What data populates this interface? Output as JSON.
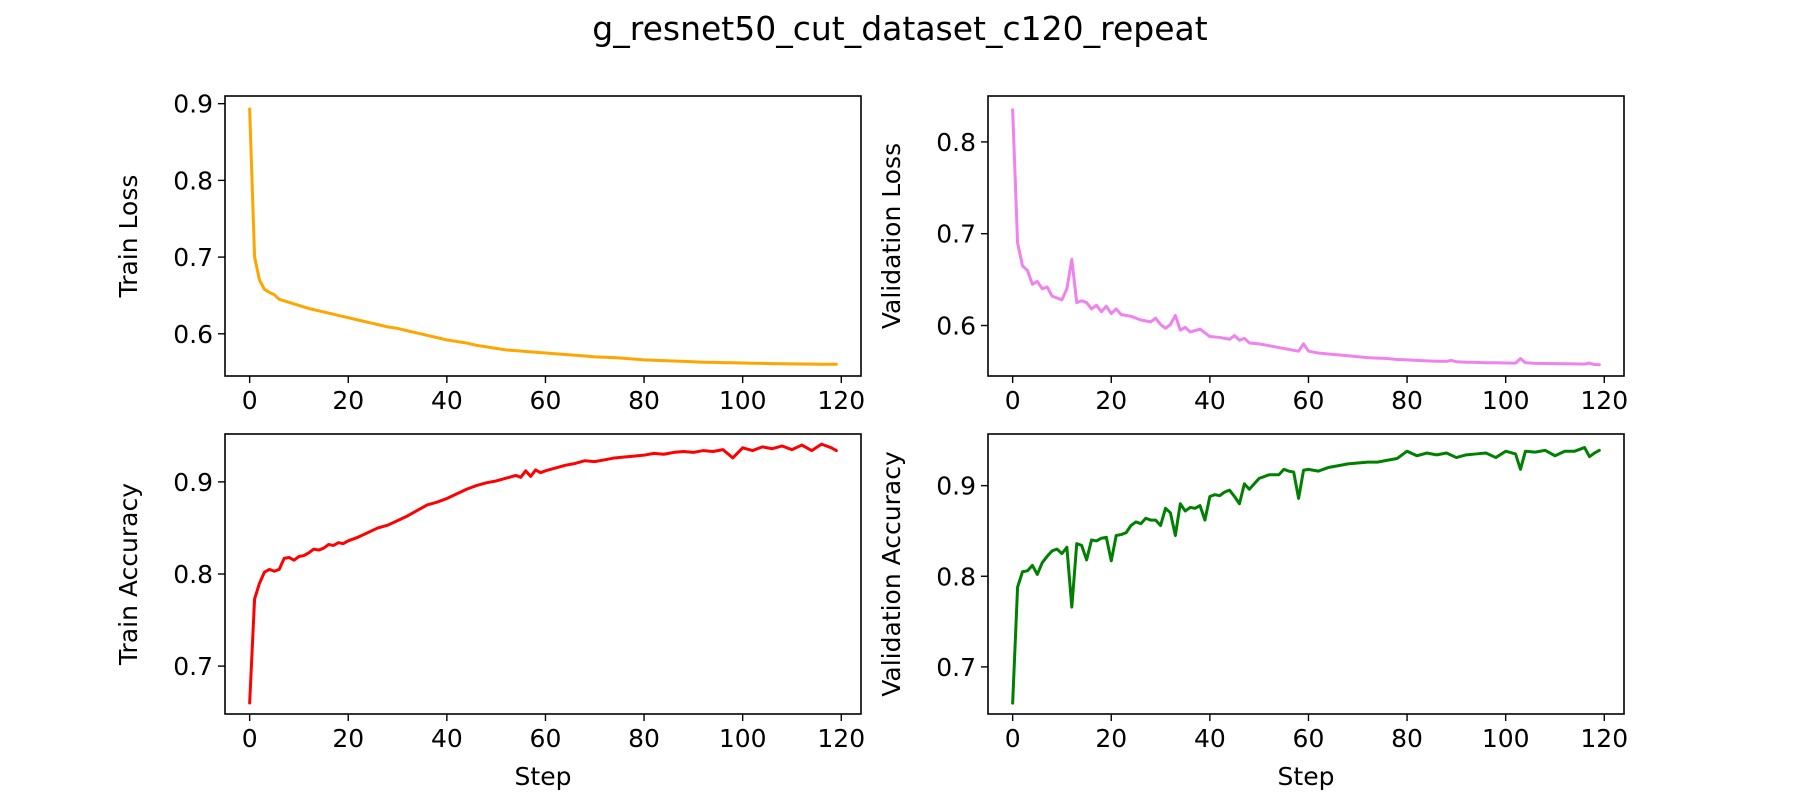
{
  "figure": {
    "title": "g_resnet50_cut_dataset_c120_repeat"
  },
  "chart_data": [
    {
      "type": "line",
      "ylabel": "Train Loss",
      "xlabel": "",
      "xlim": [
        -5,
        124
      ],
      "ylim": [
        0.545,
        0.91
      ],
      "xticks": [
        0,
        20,
        40,
        60,
        80,
        100,
        120
      ],
      "yticks": [
        0.6,
        0.7,
        0.8,
        0.9
      ],
      "color": "#ffa500",
      "series": [
        {
          "x": [
            0,
            1,
            2,
            3,
            4,
            5,
            6,
            7,
            8,
            9,
            10,
            12,
            14,
            16,
            18,
            20,
            22,
            24,
            26,
            28,
            30,
            32,
            34,
            36,
            38,
            40,
            42,
            44,
            46,
            48,
            50,
            52,
            54,
            56,
            58,
            60,
            62,
            64,
            66,
            68,
            70,
            72,
            74,
            76,
            78,
            80,
            82,
            84,
            86,
            88,
            90,
            92,
            94,
            96,
            98,
            100,
            102,
            104,
            106,
            108,
            110,
            112,
            114,
            116,
            118,
            119
          ],
          "y": [
            0.893,
            0.7,
            0.67,
            0.658,
            0.654,
            0.651,
            0.645,
            0.643,
            0.641,
            0.639,
            0.637,
            0.633,
            0.63,
            0.627,
            0.624,
            0.621,
            0.618,
            0.615,
            0.612,
            0.609,
            0.607,
            0.604,
            0.601,
            0.598,
            0.595,
            0.592,
            0.59,
            0.588,
            0.585,
            0.583,
            0.581,
            0.579,
            0.578,
            0.577,
            0.576,
            0.575,
            0.574,
            0.573,
            0.572,
            0.571,
            0.57,
            0.5695,
            0.569,
            0.568,
            0.567,
            0.566,
            0.5655,
            0.565,
            0.5645,
            0.564,
            0.5635,
            0.563,
            0.5627,
            0.5625,
            0.5622,
            0.562,
            0.5617,
            0.5615,
            0.5612,
            0.561,
            0.5608,
            0.5606,
            0.5605,
            0.5604,
            0.5603,
            0.5603
          ]
        }
      ]
    },
    {
      "type": "line",
      "ylabel": "Validation Loss",
      "xlabel": "",
      "xlim": [
        -5,
        124
      ],
      "ylim": [
        0.545,
        0.85
      ],
      "xticks": [
        0,
        20,
        40,
        60,
        80,
        100,
        120
      ],
      "yticks": [
        0.6,
        0.7,
        0.8
      ],
      "color": "#ee82ee",
      "series": [
        {
          "x": [
            0,
            1,
            2,
            3,
            4,
            5,
            6,
            7,
            8,
            9,
            10,
            11,
            12,
            13,
            14,
            15,
            16,
            17,
            18,
            19,
            20,
            21,
            22,
            24,
            26,
            28,
            29,
            30,
            31,
            32,
            33,
            34,
            35,
            36,
            38,
            39,
            40,
            42,
            44,
            45,
            46,
            47,
            48,
            50,
            52,
            54,
            56,
            57,
            58,
            59,
            60,
            62,
            64,
            66,
            68,
            70,
            72,
            74,
            76,
            78,
            80,
            82,
            84,
            86,
            88,
            89,
            90,
            92,
            94,
            96,
            98,
            100,
            102,
            103,
            104,
            106,
            108,
            110,
            112,
            114,
            116,
            117,
            118,
            119
          ],
          "y": [
            0.835,
            0.69,
            0.665,
            0.66,
            0.645,
            0.648,
            0.64,
            0.642,
            0.632,
            0.63,
            0.628,
            0.64,
            0.672,
            0.625,
            0.627,
            0.625,
            0.618,
            0.622,
            0.615,
            0.621,
            0.613,
            0.618,
            0.612,
            0.61,
            0.606,
            0.604,
            0.608,
            0.601,
            0.597,
            0.601,
            0.611,
            0.595,
            0.598,
            0.593,
            0.596,
            0.592,
            0.588,
            0.587,
            0.585,
            0.589,
            0.584,
            0.586,
            0.581,
            0.58,
            0.578,
            0.576,
            0.574,
            0.573,
            0.572,
            0.58,
            0.572,
            0.57,
            0.569,
            0.568,
            0.567,
            0.566,
            0.565,
            0.5645,
            0.564,
            0.563,
            0.5625,
            0.562,
            0.5615,
            0.561,
            0.561,
            0.562,
            0.5605,
            0.56,
            0.5598,
            0.5595,
            0.5595,
            0.5592,
            0.559,
            0.564,
            0.5595,
            0.5588,
            0.5586,
            0.5585,
            0.5583,
            0.5582,
            0.558,
            0.559,
            0.5575,
            0.5573
          ]
        }
      ]
    },
    {
      "type": "line",
      "ylabel": "Train Accuracy",
      "xlabel": "Step",
      "xlim": [
        -5,
        124
      ],
      "ylim": [
        0.648,
        0.952
      ],
      "xticks": [
        0,
        20,
        40,
        60,
        80,
        100,
        120
      ],
      "yticks": [
        0.7,
        0.8,
        0.9
      ],
      "color": "#ff0000",
      "series": [
        {
          "x": [
            0,
            1,
            2,
            3,
            4,
            5,
            6,
            7,
            8,
            9,
            10,
            11,
            12,
            13,
            14,
            15,
            16,
            17,
            18,
            19,
            20,
            22,
            24,
            26,
            28,
            30,
            32,
            34,
            36,
            38,
            40,
            42,
            44,
            46,
            48,
            50,
            52,
            54,
            55,
            56,
            57,
            58,
            59,
            60,
            62,
            64,
            66,
            68,
            70,
            72,
            74,
            76,
            78,
            80,
            82,
            84,
            86,
            88,
            90,
            92,
            94,
            96,
            98,
            100,
            102,
            104,
            106,
            108,
            110,
            112,
            114,
            116,
            118,
            119
          ],
          "y": [
            0.66,
            0.773,
            0.79,
            0.802,
            0.805,
            0.803,
            0.805,
            0.817,
            0.818,
            0.815,
            0.819,
            0.82,
            0.823,
            0.827,
            0.826,
            0.828,
            0.832,
            0.831,
            0.834,
            0.833,
            0.836,
            0.84,
            0.845,
            0.85,
            0.853,
            0.858,
            0.863,
            0.869,
            0.875,
            0.878,
            0.882,
            0.887,
            0.892,
            0.896,
            0.899,
            0.901,
            0.904,
            0.907,
            0.905,
            0.912,
            0.906,
            0.913,
            0.91,
            0.912,
            0.915,
            0.918,
            0.92,
            0.923,
            0.922,
            0.924,
            0.926,
            0.927,
            0.928,
            0.929,
            0.931,
            0.93,
            0.932,
            0.933,
            0.932,
            0.934,
            0.933,
            0.935,
            0.926,
            0.937,
            0.934,
            0.938,
            0.936,
            0.939,
            0.935,
            0.94,
            0.934,
            0.941,
            0.937,
            0.934
          ]
        }
      ]
    },
    {
      "type": "line",
      "ylabel": "Validation Accuracy",
      "xlabel": "Step",
      "xlim": [
        -5,
        124
      ],
      "ylim": [
        0.648,
        0.957
      ],
      "xticks": [
        0,
        20,
        40,
        60,
        80,
        100,
        120
      ],
      "yticks": [
        0.7,
        0.8,
        0.9
      ],
      "color": "#008000",
      "series": [
        {
          "x": [
            0,
            1,
            2,
            3,
            4,
            5,
            6,
            7,
            8,
            9,
            10,
            11,
            12,
            13,
            14,
            15,
            16,
            17,
            18,
            19,
            20,
            21,
            22,
            23,
            24,
            25,
            26,
            27,
            28,
            29,
            30,
            31,
            32,
            33,
            34,
            35,
            36,
            37,
            38,
            39,
            40,
            41,
            42,
            43,
            44,
            45,
            46,
            47,
            48,
            50,
            52,
            54,
            55,
            56,
            57,
            58,
            59,
            60,
            62,
            64,
            66,
            68,
            70,
            72,
            74,
            76,
            78,
            80,
            82,
            84,
            86,
            88,
            90,
            92,
            94,
            96,
            98,
            100,
            102,
            103,
            104,
            106,
            108,
            110,
            112,
            114,
            116,
            117,
            118,
            119
          ],
          "y": [
            0.66,
            0.788,
            0.805,
            0.806,
            0.812,
            0.802,
            0.815,
            0.822,
            0.828,
            0.83,
            0.825,
            0.832,
            0.766,
            0.836,
            0.834,
            0.818,
            0.84,
            0.839,
            0.842,
            0.843,
            0.817,
            0.845,
            0.846,
            0.848,
            0.856,
            0.86,
            0.858,
            0.864,
            0.862,
            0.862,
            0.856,
            0.875,
            0.87,
            0.845,
            0.88,
            0.872,
            0.876,
            0.875,
            0.878,
            0.862,
            0.888,
            0.89,
            0.889,
            0.893,
            0.895,
            0.888,
            0.88,
            0.902,
            0.896,
            0.908,
            0.912,
            0.912,
            0.918,
            0.916,
            0.915,
            0.886,
            0.917,
            0.918,
            0.916,
            0.92,
            0.922,
            0.924,
            0.925,
            0.926,
            0.926,
            0.928,
            0.93,
            0.938,
            0.933,
            0.936,
            0.934,
            0.936,
            0.931,
            0.934,
            0.935,
            0.936,
            0.931,
            0.938,
            0.935,
            0.918,
            0.938,
            0.937,
            0.939,
            0.933,
            0.938,
            0.938,
            0.942,
            0.932,
            0.936,
            0.939
          ]
        }
      ]
    }
  ]
}
